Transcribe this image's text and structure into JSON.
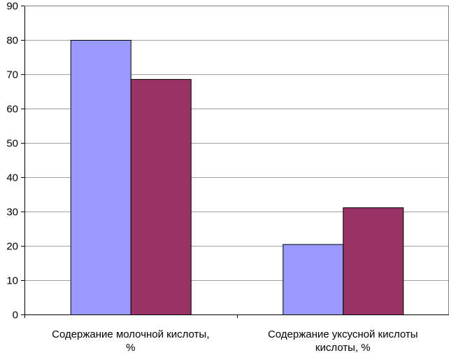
{
  "chart_data": {
    "type": "bar",
    "categories": [
      [
        "Содержание молочной кислоты,",
        "%"
      ],
      [
        "Содержание уксусной кислоты",
        "кислоты, %"
      ]
    ],
    "series": [
      {
        "values": [
          80,
          20.5
        ],
        "color": "#9999ff"
      },
      {
        "values": [
          68.6,
          31.2
        ],
        "color": "#993366"
      }
    ],
    "ylim": [
      0,
      90
    ],
    "yticks": [
      0,
      10,
      20,
      30,
      40,
      50,
      60,
      70,
      80,
      90
    ],
    "grid": true,
    "gridline_color": "#a0a0a0",
    "plot_border_color": "#808080",
    "background": "#ffffff",
    "legend": "none"
  }
}
